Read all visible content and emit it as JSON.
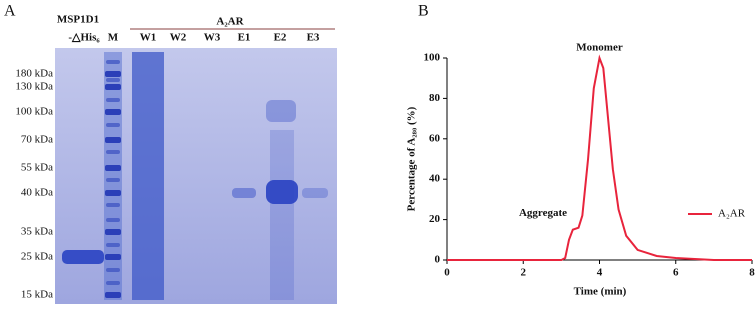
{
  "panel_a": {
    "label": "A",
    "sample_label": "MSP1D1",
    "sample_sublabel": "-△His₆",
    "marker_lane": "M",
    "group_label": "A₂AR",
    "lanes": [
      "W1",
      "W2",
      "W3",
      "E1",
      "E2",
      "E3"
    ],
    "markers": [
      "180 kDa",
      "130 kDa",
      "100 kDa",
      "70 kDa",
      "55 kDa",
      "40 kDa",
      "35 kDa",
      "25 kDa",
      "15 kDa"
    ]
  },
  "chart_data": {
    "type": "line",
    "panel_label": "B",
    "xlabel": "Time (min)",
    "ylabel": "Percentage of A₂₈₀ (%)",
    "annotations": [
      "Monomer",
      "Aggregate"
    ],
    "x": [
      0,
      3.0,
      3.1,
      3.2,
      3.3,
      3.45,
      3.55,
      3.7,
      3.85,
      4.0,
      4.1,
      4.2,
      4.35,
      4.5,
      4.7,
      5.0,
      5.5,
      6.0,
      6.5,
      7,
      8
    ],
    "series": [
      {
        "name": "A₂AR",
        "color": "#e8243c",
        "values": [
          0,
          0,
          1,
          10,
          15,
          16,
          22,
          50,
          85,
          100,
          95,
          75,
          45,
          25,
          12,
          5,
          2,
          1,
          0.5,
          0,
          0
        ]
      }
    ],
    "xlim": [
      0,
      8
    ],
    "ylim": [
      0,
      100
    ],
    "xticks": [
      0,
      2,
      4,
      6,
      8
    ],
    "yticks": [
      0,
      20,
      40,
      60,
      80,
      100
    ],
    "legend": "right"
  }
}
